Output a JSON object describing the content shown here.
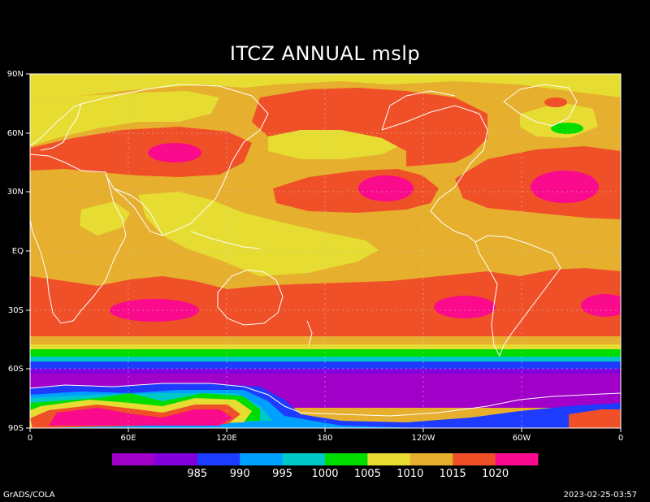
{
  "title": "ITCZ ANNUAL mslp",
  "footer_left": "GrADS/COLA",
  "footer_right": "2023-02-25-03:57",
  "y_ticks": [
    "90N",
    "60N",
    "30N",
    "EQ",
    "30S",
    "60S",
    "90S"
  ],
  "x_ticks": [
    "0",
    "60E",
    "120E",
    "180",
    "120W",
    "60W",
    "0"
  ],
  "colorbar": {
    "colors": [
      "#a000c8",
      "#8200dc",
      "#1e3cff",
      "#00a0ff",
      "#00c8c8",
      "#00dc00",
      "#e6dc32",
      "#e6af2d",
      "#f05028",
      "#fa0a8c"
    ],
    "labels": [
      "985",
      "990",
      "995",
      "1000",
      "1005",
      "1010",
      "1015",
      "1020"
    ]
  },
  "contour_colors": {
    "c1005": "#e6dc32",
    "c1010": "#e6af2d",
    "c1015": "#f05028",
    "c1020": "#fa0a8c",
    "c1000": "#00dc00",
    "c995": "#00c8c8",
    "c990": "#1e3cff",
    "c985": "#8200dc",
    "c980": "#a000c8"
  }
}
